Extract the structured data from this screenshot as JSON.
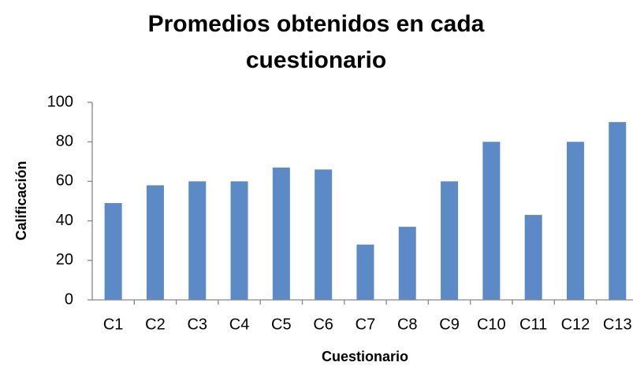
{
  "chart_data": {
    "type": "bar",
    "title": "Promedios obtenidos en cada cuestionario",
    "xlabel": "Cuestionario",
    "ylabel": "Calificación",
    "categories": [
      "C1",
      "C2",
      "C3",
      "C4",
      "C5",
      "C6",
      "C7",
      "C8",
      "C9",
      "C10",
      "C11",
      "C12",
      "C13"
    ],
    "values": [
      49,
      58,
      60,
      60,
      67,
      66,
      28,
      37,
      60,
      80,
      43,
      80,
      90
    ],
    "color": "#5b8ac6",
    "ylim": [
      0,
      100
    ],
    "yticks": [
      0,
      20,
      40,
      60,
      80,
      100
    ],
    "grid": false
  }
}
